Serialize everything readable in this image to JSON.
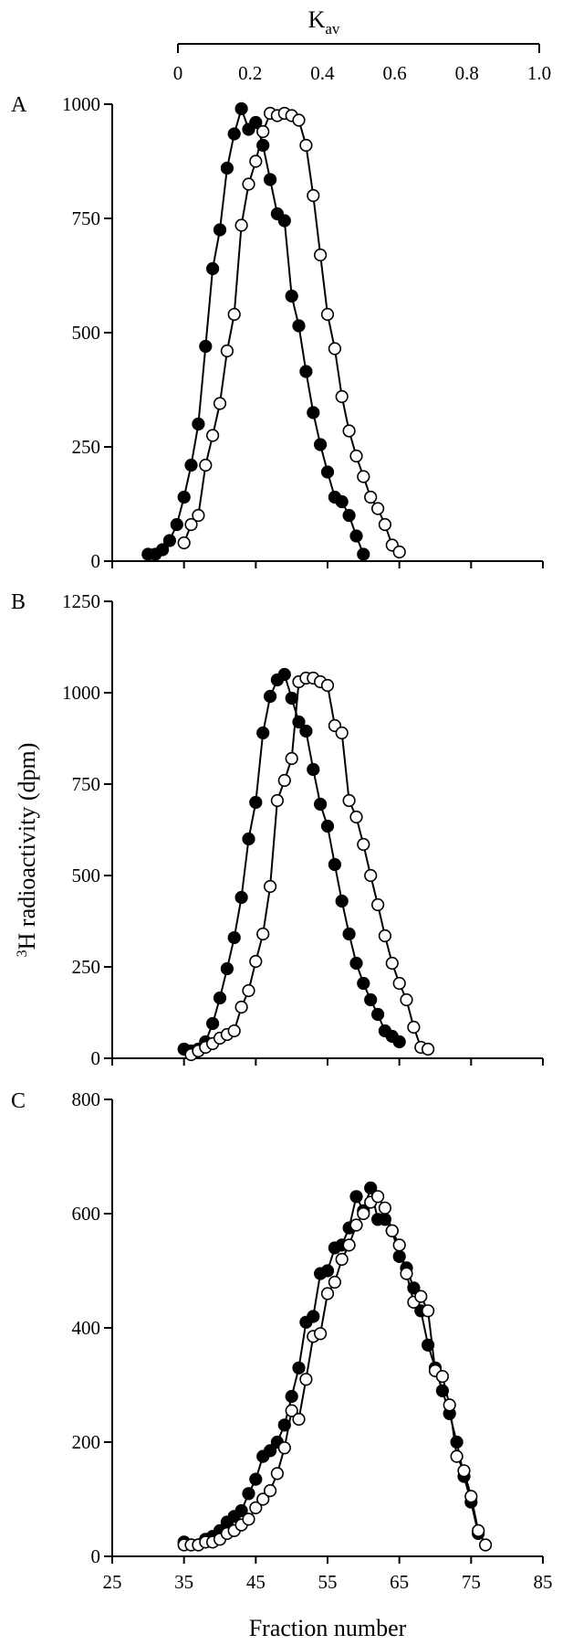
{
  "chart_data": {
    "type": "scatter",
    "top_axis": {
      "label_main": "K",
      "label_sub": "av",
      "range": [
        0,
        1.0
      ],
      "ticks": [
        "0",
        "0.2",
        "0.4",
        "0.6",
        "0.8",
        "1.0"
      ],
      "tick_values": [
        0,
        0.2,
        0.4,
        0.6,
        0.8,
        1.0
      ]
    },
    "x_axis": {
      "label": "Fraction number",
      "range": [
        25,
        85
      ],
      "ticks": [
        "25",
        "35",
        "45",
        "55",
        "65",
        "75",
        "85"
      ],
      "tick_values": [
        25,
        35,
        45,
        55,
        65,
        75,
        85
      ]
    },
    "y_axis": {
      "label_sup": "3",
      "label_main": "H radioactivity (dpm)"
    },
    "panels": [
      {
        "letter": "A",
        "ylim": [
          0,
          1000
        ],
        "yticks": [
          "0",
          "250",
          "500",
          "750",
          "1000"
        ],
        "ytick_values": [
          0,
          250,
          500,
          750,
          1000
        ],
        "series": [
          {
            "marker": "filled",
            "x": [
              30,
              31,
              32,
              33,
              34,
              35,
              36,
              37,
              38,
              39,
              40,
              41,
              42,
              43,
              44,
              45,
              46,
              47,
              48,
              49,
              50,
              51,
              52,
              53,
              54,
              55,
              56,
              57,
              58,
              59,
              60
            ],
            "y": [
              15,
              15,
              25,
              45,
              80,
              140,
              210,
              300,
              470,
              640,
              725,
              860,
              935,
              990,
              945,
              960,
              910,
              835,
              760,
              745,
              580,
              515,
              415,
              325,
              255,
              195,
              140,
              130,
              100,
              55,
              15
            ]
          },
          {
            "marker": "open",
            "x": [
              35,
              36,
              37,
              38,
              39,
              40,
              41,
              42,
              43,
              44,
              45,
              46,
              47,
              48,
              49,
              50,
              51,
              52,
              53,
              54,
              55,
              56,
              57,
              58,
              59,
              60,
              61,
              62,
              63,
              64,
              65
            ],
            "y": [
              40,
              80,
              100,
              210,
              275,
              345,
              460,
              540,
              735,
              825,
              875,
              940,
              980,
              975,
              980,
              975,
              965,
              910,
              800,
              670,
              540,
              465,
              360,
              285,
              230,
              185,
              140,
              115,
              80,
              35,
              20
            ]
          }
        ]
      },
      {
        "letter": "B",
        "ylim": [
          0,
          1250
        ],
        "yticks": [
          "0",
          "250",
          "500",
          "750",
          "1000",
          "1250"
        ],
        "ytick_values": [
          0,
          250,
          500,
          750,
          1000,
          1250
        ],
        "series": [
          {
            "marker": "filled",
            "x": [
              35,
              36,
              37,
              38,
              39,
              40,
              41,
              42,
              43,
              44,
              45,
              46,
              47,
              48,
              49,
              50,
              51,
              52,
              53,
              54,
              55,
              56,
              57,
              58,
              59,
              60,
              61,
              62,
              63,
              64,
              65
            ],
            "y": [
              25,
              20,
              25,
              45,
              95,
              165,
              245,
              330,
              440,
              600,
              700,
              890,
              990,
              1035,
              1050,
              985,
              920,
              895,
              790,
              695,
              635,
              530,
              430,
              340,
              260,
              205,
              160,
              120,
              75,
              60,
              45
            ]
          },
          {
            "marker": "open",
            "x": [
              36,
              37,
              38,
              39,
              40,
              41,
              42,
              43,
              44,
              45,
              46,
              47,
              48,
              49,
              50,
              51,
              52,
              53,
              54,
              55,
              56,
              57,
              58,
              59,
              60,
              61,
              62,
              63,
              64,
              65,
              66,
              67,
              68,
              69
            ],
            "y": [
              10,
              20,
              30,
              40,
              55,
              65,
              75,
              140,
              185,
              265,
              340,
              470,
              705,
              760,
              820,
              1030,
              1040,
              1040,
              1030,
              1020,
              910,
              890,
              705,
              660,
              585,
              500,
              420,
              335,
              260,
              205,
              160,
              85,
              30,
              25
            ]
          }
        ]
      },
      {
        "letter": "C",
        "ylim": [
          0,
          800
        ],
        "yticks": [
          "0",
          "200",
          "400",
          "600",
          "800"
        ],
        "ytick_values": [
          0,
          200,
          400,
          600,
          800
        ],
        "series": [
          {
            "marker": "filled",
            "x": [
              35,
              36,
              37,
              38,
              39,
              40,
              41,
              42,
              43,
              44,
              45,
              46,
              47,
              48,
              49,
              50,
              51,
              52,
              53,
              54,
              55,
              56,
              57,
              58,
              59,
              60,
              61,
              62,
              63,
              64,
              65,
              66,
              67,
              68,
              69,
              70,
              71,
              72,
              73,
              74,
              75,
              76
            ],
            "y": [
              25,
              20,
              20,
              30,
              35,
              45,
              60,
              70,
              80,
              110,
              135,
              175,
              185,
              200,
              230,
              280,
              330,
              410,
              420,
              495,
              500,
              540,
              545,
              575,
              630,
              605,
              645,
              590,
              590,
              570,
              525,
              505,
              470,
              430,
              370,
              330,
              290,
              250,
              200,
              140,
              95,
              40
            ]
          },
          {
            "marker": "open",
            "x": [
              35,
              36,
              37,
              38,
              39,
              40,
              41,
              42,
              43,
              44,
              45,
              46,
              47,
              48,
              49,
              50,
              51,
              52,
              53,
              54,
              55,
              56,
              57,
              58,
              59,
              60,
              61,
              62,
              63,
              64,
              65,
              66,
              67,
              68,
              69,
              70,
              71,
              72,
              73,
              74,
              75,
              76,
              77
            ],
            "y": [
              20,
              20,
              20,
              25,
              25,
              30,
              40,
              45,
              55,
              65,
              85,
              100,
              115,
              145,
              190,
              255,
              240,
              310,
              385,
              390,
              460,
              480,
              520,
              545,
              580,
              600,
              620,
              630,
              610,
              570,
              545,
              495,
              445,
              455,
              430,
              325,
              315,
              265,
              175,
              150,
              105,
              45,
              20
            ]
          }
        ]
      }
    ]
  }
}
